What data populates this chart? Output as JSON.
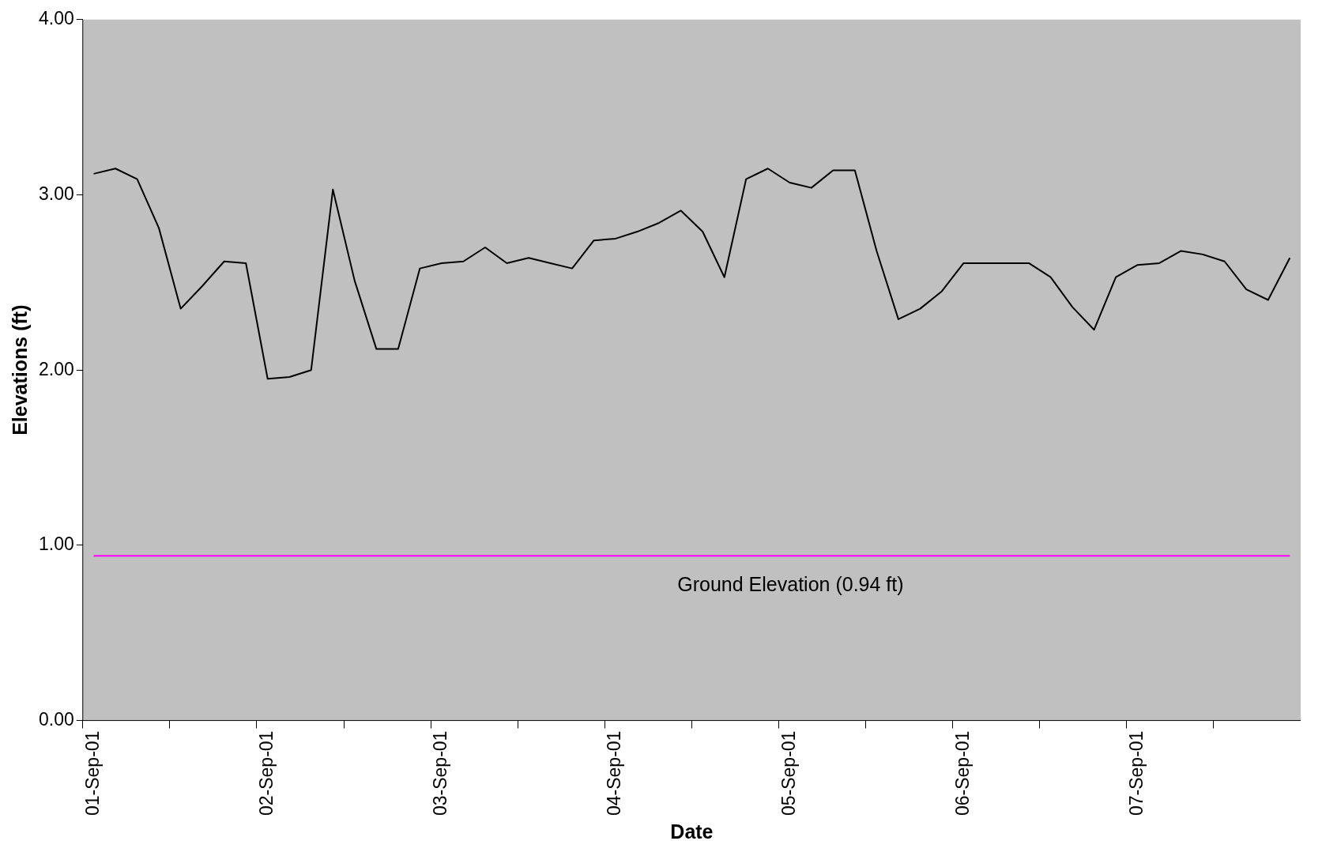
{
  "chart_data": {
    "type": "line",
    "xlabel": "Date",
    "ylabel": "Elevations (ft)",
    "categories": [
      "01-Sep-01",
      null,
      null,
      null,
      null,
      null,
      null,
      null,
      "02-Sep-01",
      null,
      null,
      null,
      null,
      null,
      null,
      null,
      "03-Sep-01",
      null,
      null,
      null,
      null,
      null,
      null,
      null,
      "04-Sep-01",
      null,
      null,
      null,
      null,
      null,
      null,
      null,
      "05-Sep-01",
      null,
      null,
      null,
      null,
      null,
      null,
      null,
      "06-Sep-01",
      null,
      null,
      null,
      null,
      null,
      null,
      null,
      "07-Sep-01",
      null,
      null,
      null,
      null,
      null,
      null,
      null
    ],
    "series": [
      {
        "color": "#000000",
        "values": [
          3.12,
          3.15,
          3.09,
          2.81,
          2.35,
          2.48,
          2.62,
          2.61,
          1.95,
          1.96,
          2.0,
          3.03,
          2.51,
          2.12,
          2.12,
          2.58,
          2.61,
          2.62,
          2.7,
          2.61,
          2.64,
          2.61,
          2.58,
          2.74,
          2.75,
          2.79,
          2.84,
          2.91,
          2.79,
          2.53,
          3.09,
          3.15,
          3.07,
          3.04,
          3.14,
          3.14,
          2.68,
          2.29,
          2.35,
          2.45,
          2.61,
          2.61,
          2.61,
          2.61,
          2.53,
          2.36,
          2.23,
          2.53,
          2.6,
          2.61,
          2.68,
          2.66,
          2.62,
          2.46,
          2.4,
          2.64
        ]
      }
    ],
    "ylim": [
      0,
      4
    ],
    "yticks": [
      {
        "value": 0,
        "label": "0.00"
      },
      {
        "value": 1,
        "label": "1.00"
      },
      {
        "value": 2,
        "label": "2.00"
      },
      {
        "value": 3,
        "label": "3.00"
      },
      {
        "value": 4,
        "label": "4.00"
      }
    ],
    "ref_lines": [
      {
        "axis": "y",
        "value": 0.94,
        "label": "Ground Elevation (0.94 ft)",
        "color": "#ff00ff"
      }
    ],
    "grid": false,
    "legend": false,
    "marker": "none",
    "line_style": "solid"
  }
}
